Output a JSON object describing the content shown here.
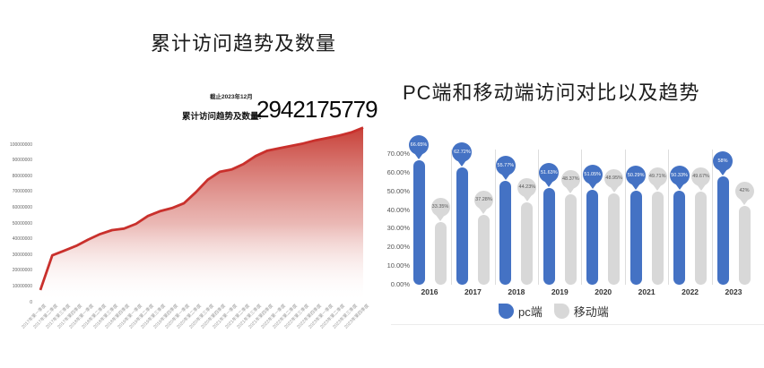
{
  "left_panel": {
    "title": "累计访问趋势及数量",
    "as_of": "截止2023年12月",
    "total_label": "累计访问趋势及数量:",
    "total_value": "2942175779"
  },
  "right_panel": {
    "title": "PC端和移动端访问对比以及趋势",
    "legend": [
      {
        "label": "pc端",
        "color": "#4472c4"
      },
      {
        "label": "移动端",
        "color": "#d8d8d8"
      }
    ]
  },
  "colors": {
    "area_line": "#c9302c",
    "pc_blue": "#4472c4",
    "mobile_gray": "#d8d8d8",
    "gray_bubble_text": "#595959"
  },
  "chart_data": [
    {
      "type": "area",
      "title": "累计访问趋势及数量",
      "x": [
        "2017年第一季度",
        "2017年第二季度",
        "2017年第三季度",
        "2017年第四季度",
        "2018年第一季度",
        "2018年第二季度",
        "2018年第三季度",
        "2018年第四季度",
        "2019年第一季度",
        "2019年第二季度",
        "2019年第三季度",
        "2019年第四季度",
        "2020年第一季度",
        "2020年第二季度",
        "2020年第三季度",
        "2020年第四季度",
        "2021年第一季度",
        "2021年第二季度",
        "2021年第三季度",
        "2021年第四季度",
        "2022年第一季度",
        "2022年第二季度",
        "2022年第三季度",
        "2022年第四季度",
        "2023年第一季度",
        "2023年第二季度",
        "2023年第三季度",
        "2023年第四季度"
      ],
      "values": [
        8000000,
        30000000,
        33000000,
        36000000,
        40000000,
        43500000,
        46000000,
        47000000,
        50000000,
        55000000,
        58000000,
        60000000,
        63000000,
        70000000,
        78000000,
        83000000,
        84500000,
        88000000,
        93000000,
        96500000,
        98000000,
        99500000,
        101000000,
        103000000,
        104500000,
        106000000,
        108000000,
        111000000
      ],
      "ylabel_ticks": [
        "0",
        "10000000",
        "20000000",
        "30000000",
        "40000000",
        "50000000",
        "60000000",
        "70000000",
        "80000000",
        "90000000",
        "100000000"
      ],
      "ylim": [
        0,
        100000000
      ],
      "line_color": "#c9302c",
      "fill_gradient": [
        "#c5362e",
        "#ffffff"
      ],
      "annotation": {
        "as_of": "截止2023年12月",
        "label": "累计访问趋势及数量:",
        "value": "2942175779"
      },
      "grid": false,
      "xlabel": "",
      "ylabel": ""
    },
    {
      "type": "bar",
      "title": "PC端和移动端访问对比以及趋势",
      "categories": [
        "2016",
        "2017",
        "2018",
        "2019",
        "2020",
        "2021",
        "2022",
        "2023"
      ],
      "series": [
        {
          "name": "pc端",
          "color": "#4472c4",
          "values": [
            66.65,
            62.72,
            55.77,
            51.63,
            51.05,
            50.29,
            50.33,
            58
          ],
          "labels": [
            "66.65%",
            "62.72%",
            "55.77%",
            "51.63%",
            "51.05%",
            "50.29%",
            "50.33%",
            "58%"
          ]
        },
        {
          "name": "移动端",
          "color": "#d8d8d8",
          "values": [
            33.35,
            37.28,
            44.23,
            48.37,
            48.95,
            49.71,
            49.67,
            42
          ],
          "labels": [
            "33.35%",
            "37.28%",
            "44.23%",
            "48.37%",
            "48.95%",
            "49.71%",
            "49.67%",
            "42%"
          ]
        }
      ],
      "yticks": [
        "0.00%",
        "10.00%",
        "20.00%",
        "30.00%",
        "40.00%",
        "50.00%",
        "60.00%",
        "70.00%"
      ],
      "ylim": [
        0,
        70
      ],
      "grid": false,
      "legend_position": "bottom"
    }
  ]
}
